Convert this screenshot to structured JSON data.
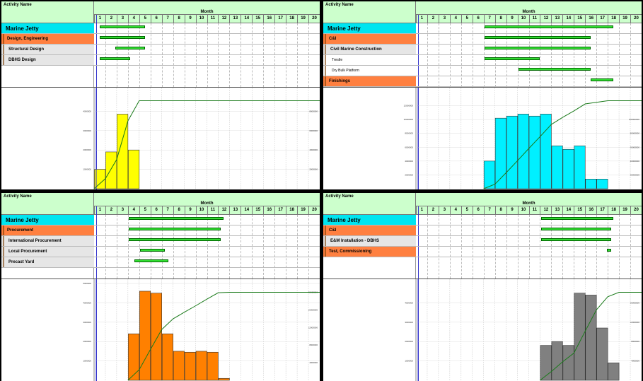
{
  "header": {
    "activity_name": "Activity Name",
    "month_title": "Month"
  },
  "months": [
    "1",
    "2",
    "3",
    "4",
    "5",
    "6",
    "7",
    "8",
    "9",
    "10",
    "11",
    "12",
    "13",
    "14",
    "15",
    "16",
    "17",
    "18",
    "19",
    "20"
  ],
  "panels": [
    {
      "id": "p1",
      "rows": [
        {
          "label": "Marine Jetty",
          "level": 0,
          "bar": [
            1,
            5
          ]
        },
        {
          "label": "Design, Engineering",
          "level": 1,
          "bar": [
            1,
            5
          ]
        },
        {
          "label": "Structural Design",
          "level": 2,
          "bar": [
            2.4,
            5
          ]
        },
        {
          "label": "DBHS Design",
          "level": 2,
          "bar": [
            1,
            3.7
          ]
        }
      ],
      "chart_data": {
        "type": "bar",
        "color": "#ffff00",
        "categories": [
          "1",
          "2",
          "3",
          "4",
          "5",
          "6",
          "7",
          "8",
          "9",
          "10",
          "11",
          "12",
          "13",
          "14",
          "15",
          "16",
          "17",
          "18",
          "19",
          "20"
        ],
        "values": [
          1000000,
          1900000,
          3850000,
          2000000,
          0,
          0,
          0,
          0,
          0,
          0,
          0,
          0,
          0,
          0,
          0,
          0,
          0,
          0,
          0,
          0
        ],
        "ylim": [
          0,
          5000000
        ],
        "cumulative_ylim": [
          0,
          10000000
        ],
        "y_ticks": [
          "1000000",
          "2000000",
          "3000000",
          "4000000"
        ],
        "y2_ticks": [
          "2000000",
          "4000000",
          "6000000",
          "8000000"
        ]
      }
    },
    {
      "id": "p2",
      "rows": [
        {
          "label": "Marine Jetty",
          "level": 0,
          "bar": [
            6.6,
            18
          ]
        },
        {
          "label": "C&I",
          "level": 1,
          "bar": [
            6.6,
            16
          ]
        },
        {
          "label": "Civil Marine Construction",
          "level": 2,
          "bar": [
            6.6,
            16
          ]
        },
        {
          "label": "Trestle",
          "level": 3,
          "bar": [
            6.6,
            11.5
          ]
        },
        {
          "label": "Dry Bulk Platform",
          "level": 3,
          "bar": [
            9.6,
            16
          ]
        },
        {
          "label": "Finishings",
          "level": 1,
          "bar": [
            16,
            18
          ]
        }
      ],
      "chart_data": {
        "type": "bar",
        "color": "#00f0ff",
        "categories": [
          "1",
          "2",
          "3",
          "4",
          "5",
          "6",
          "7",
          "8",
          "9",
          "10",
          "11",
          "12",
          "13",
          "14",
          "15",
          "16",
          "17",
          "18",
          "19",
          "20"
        ],
        "values": [
          0,
          0,
          0,
          0,
          0,
          0,
          4000000,
          10200000,
          10500000,
          10800000,
          10500000,
          10800000,
          6200000,
          5700000,
          6200000,
          1400000,
          1400000,
          0,
          0,
          0
        ],
        "ylim": [
          0,
          14000000
        ],
        "cumulative_ylim": [
          0,
          140000000
        ],
        "y_ticks": [
          "2000000",
          "4000000",
          "6000000",
          "8000000",
          "10000000",
          "12000000"
        ],
        "y2_ticks": [
          "20000000",
          "40000000",
          "60000000",
          "80000000",
          "100000000"
        ]
      }
    },
    {
      "id": "p3",
      "rows": [
        {
          "label": "Marine Jetty",
          "level": 0,
          "bar": [
            3.6,
            12
          ]
        },
        {
          "label": "Procurement",
          "level": 1,
          "bar": [
            3.6,
            11.7
          ]
        },
        {
          "label": "International Procurement",
          "level": 2,
          "bar": [
            3.6,
            11.7
          ]
        },
        {
          "label": "Local Procurement",
          "level": 2,
          "bar": [
            4.6,
            6.8
          ]
        },
        {
          "label": "Precast Yard",
          "level": 2,
          "bar": [
            4.1,
            7.1
          ]
        }
      ],
      "chart_data": {
        "type": "bar",
        "color": "#ff8000",
        "categories": [
          "1",
          "2",
          "3",
          "4",
          "5",
          "6",
          "7",
          "8",
          "9",
          "10",
          "11",
          "12",
          "13",
          "14",
          "15",
          "16",
          "17",
          "18",
          "19",
          "20"
        ],
        "values": [
          0,
          0,
          0,
          2400000,
          4600000,
          4500000,
          2400000,
          1500000,
          1450000,
          1500000,
          1450000,
          100000,
          0,
          0,
          0,
          0,
          0,
          0,
          0,
          0
        ],
        "ylim": [
          0,
          5000000
        ],
        "cumulative_ylim": [
          0,
          22000000
        ],
        "y_ticks": [
          "1000000",
          "2000000",
          "3000000",
          "4000000",
          "5000000"
        ],
        "y2_ticks": [
          "4000000",
          "8000000",
          "12000000",
          "16000000",
          "20000000"
        ]
      }
    },
    {
      "id": "p4",
      "rows": [
        {
          "label": "Marine Jetty",
          "level": 0,
          "bar": [
            11.6,
            18
          ]
        },
        {
          "label": "C&I",
          "level": 1,
          "bar": [
            11.6,
            17.8
          ]
        },
        {
          "label": "E&M Installation - DBHS",
          "level": 2,
          "bar": [
            11.6,
            17.8
          ]
        },
        {
          "label": "Test, Commissioning",
          "level": 1,
          "bar": [
            17.4,
            17.8
          ]
        }
      ],
      "chart_data": {
        "type": "bar",
        "color": "#808080",
        "categories": [
          "1",
          "2",
          "3",
          "4",
          "5",
          "6",
          "7",
          "8",
          "9",
          "10",
          "11",
          "12",
          "13",
          "14",
          "15",
          "16",
          "17",
          "18",
          "19",
          "20"
        ],
        "values": [
          0,
          0,
          0,
          0,
          0,
          0,
          0,
          0,
          0,
          0,
          0,
          1800000,
          2000000,
          1800000,
          4500000,
          4400000,
          2700000,
          900000,
          0,
          0
        ],
        "ylim": [
          0,
          5000000
        ],
        "cumulative_ylim": [
          0,
          20000000
        ],
        "y_ticks": [
          "1000000",
          "2000000",
          "3000000",
          "4000000"
        ],
        "y2_ticks": [
          "4000000",
          "8000000",
          "12000000",
          "16000000"
        ]
      }
    }
  ]
}
